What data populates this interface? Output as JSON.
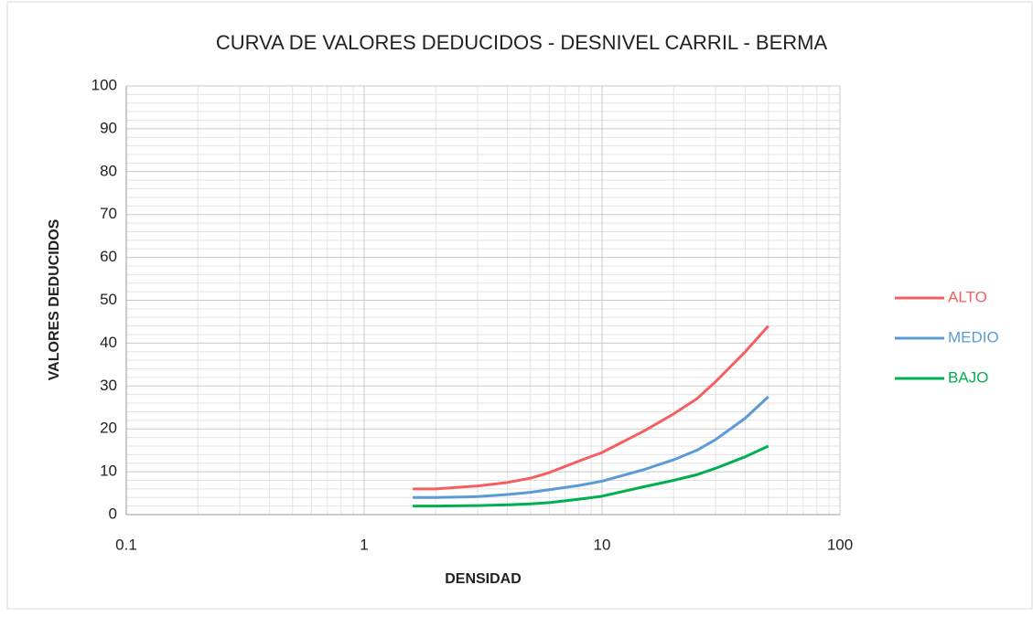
{
  "chart_data": {
    "type": "line",
    "title": "CURVA DE VALORES DEDUCIDOS - DESNIVEL CARRIL - BERMA",
    "x_label": "DENSIDAD",
    "y_label": "VALORES DEDUCIDOS",
    "x": [
      1.6,
      2,
      3,
      4,
      5,
      6,
      8,
      10,
      15,
      20,
      25,
      30,
      40,
      50
    ],
    "series": [
      {
        "name": "ALTO",
        "color": "#f4605f",
        "values": [
          6,
          6,
          6.7,
          7.5,
          8.5,
          9.8,
          12.5,
          14.5,
          19.5,
          23.5,
          27,
          31,
          38,
          44
        ]
      },
      {
        "name": "MEDIO",
        "color": "#5b9bd5",
        "values": [
          4,
          4,
          4.2,
          4.7,
          5.2,
          5.8,
          6.8,
          7.8,
          10.5,
          12.8,
          15,
          17.5,
          22.5,
          27.5
        ]
      },
      {
        "name": "BAJO",
        "color": "#00b050",
        "values": [
          2,
          2,
          2.1,
          2.3,
          2.5,
          2.8,
          3.6,
          4.3,
          6.5,
          8,
          9.3,
          10.8,
          13.5,
          16
        ]
      }
    ],
    "xlim": [
      0.1,
      100
    ],
    "xticks": [
      0.1,
      1,
      10,
      100
    ],
    "x_log": true,
    "ylim": [
      0,
      100
    ],
    "yticks": [
      0,
      10,
      20,
      30,
      40,
      50,
      60,
      70,
      80,
      90,
      100
    ],
    "grid": true,
    "minor_grid": true,
    "legend": "right"
  }
}
